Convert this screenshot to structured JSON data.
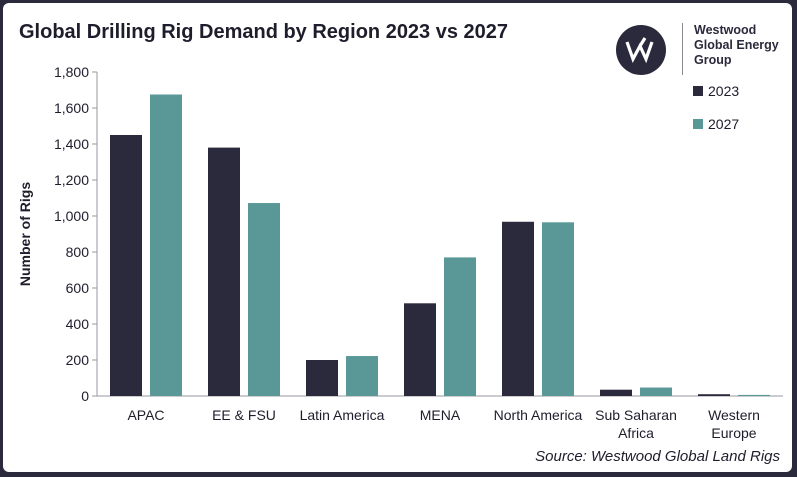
{
  "chart_data": {
    "type": "bar",
    "title": "Global Drilling Rig Demand by Region 2023 vs 2027",
    "xlabel": "",
    "ylabel": "Number of Rigs",
    "ylim": [
      0,
      1800
    ],
    "yticks": [
      0,
      200,
      400,
      600,
      800,
      1000,
      1200,
      1400,
      1600,
      1800
    ],
    "ytick_labels": [
      "0",
      "200",
      "400",
      "600",
      "800",
      "1,000",
      "1,200",
      "1,400",
      "1,600",
      "1,800"
    ],
    "categories": [
      "APAC",
      "EE & FSU",
      "Latin America",
      "MENA",
      "North America",
      "Sub Saharan Africa",
      "Western Europe"
    ],
    "category_lines": [
      [
        "APAC"
      ],
      [
        "EE & FSU"
      ],
      [
        "Latin America"
      ],
      [
        "MENA"
      ],
      [
        "North America"
      ],
      [
        "Sub Saharan",
        "Africa"
      ],
      [
        "Western",
        "Europe"
      ]
    ],
    "series": [
      {
        "name": "2023",
        "color": "#2b2a3c",
        "values": [
          1450,
          1380,
          200,
          515,
          968,
          35,
          10
        ]
      },
      {
        "name": "2027",
        "color": "#5a9898",
        "values": [
          1675,
          1072,
          222,
          770,
          965,
          47,
          6
        ]
      }
    ],
    "grid": false,
    "legend_position": "top-right"
  },
  "logo": {
    "line1": "Westwood",
    "line2": "Global Energy",
    "line3": "Group",
    "icon": "westwood-w-logo-icon"
  },
  "source_text": "Source: Westwood Global Land Rigs"
}
